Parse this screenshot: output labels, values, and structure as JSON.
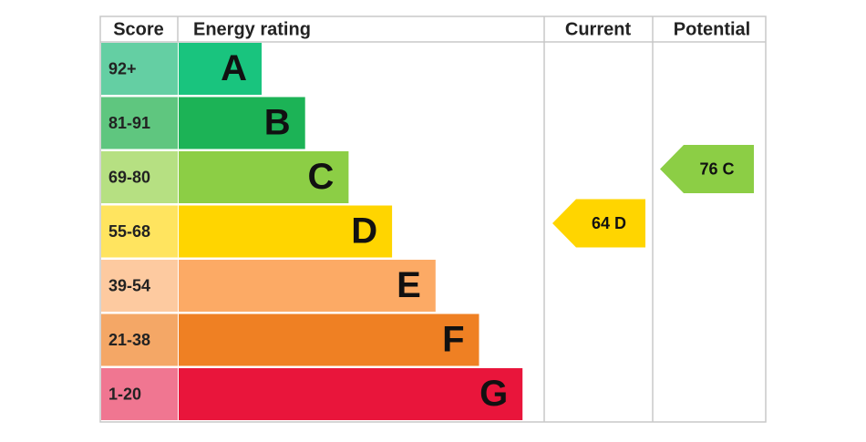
{
  "header": {
    "score": "Score",
    "rating": "Energy rating",
    "current": "Current",
    "potential": "Potential"
  },
  "bands": [
    {
      "score": "92+",
      "letter": "A",
      "color": "#19c47e",
      "score_color": "#64cfa3"
    },
    {
      "score": "81-91",
      "letter": "B",
      "color": "#1cb356",
      "score_color": "#5fc67f"
    },
    {
      "score": "69-80",
      "letter": "C",
      "color": "#8cce45",
      "score_color": "#b6e082"
    },
    {
      "score": "55-68",
      "letter": "D",
      "color": "#ffd500",
      "score_color": "#ffe45f"
    },
    {
      "score": "39-54",
      "letter": "E",
      "color": "#fcaa65",
      "score_color": "#fdcaa0"
    },
    {
      "score": "21-38",
      "letter": "F",
      "color": "#ef8023",
      "score_color": "#f4a766"
    },
    {
      "score": "1-20",
      "letter": "G",
      "color": "#e9153b",
      "score_color": "#f07691"
    }
  ],
  "current": {
    "label": "64 D"
  },
  "potential": {
    "label": "76 C"
  }
}
